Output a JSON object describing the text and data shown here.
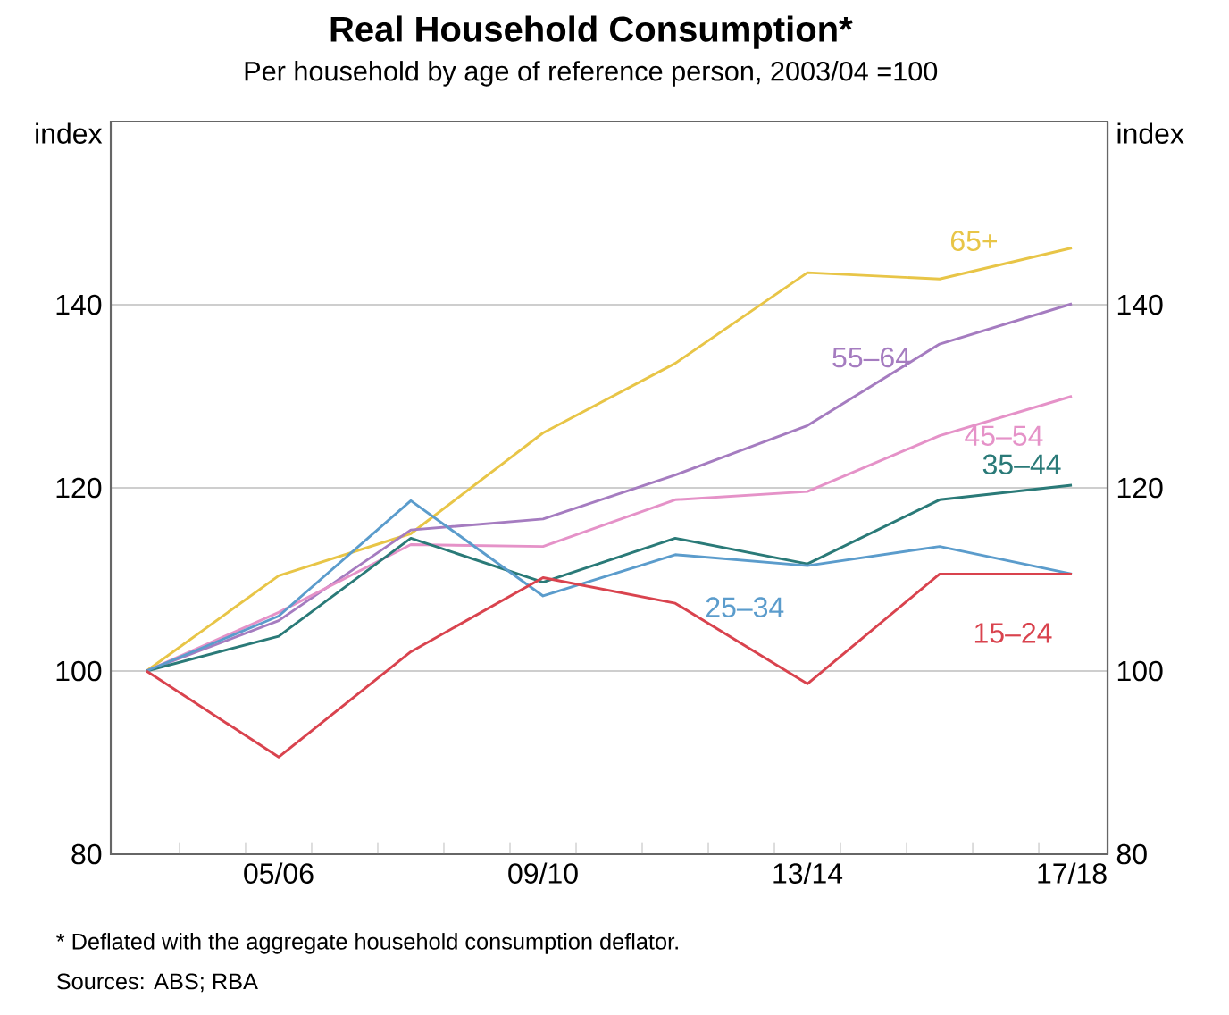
{
  "chart_data": {
    "type": "line",
    "title": "Real Household Consumption*",
    "subtitle": "Per household by age of reference person, 2003/04 =100",
    "ylabel": "index",
    "y2label": "index",
    "categories": [
      null,
      "05/06",
      null,
      "09/10",
      null,
      "13/14",
      null,
      "17/18"
    ],
    "series": [
      {
        "name": "65+",
        "color": "#e8c547",
        "values": [
          100,
          110.4,
          115,
          126,
          133.6,
          143.5,
          142.8,
          146.2
        ]
      },
      {
        "name": "55–64",
        "color": "#a57cc0",
        "values": [
          100,
          105.5,
          115.4,
          116.6,
          121.4,
          126.8,
          135.7,
          140.1
        ]
      },
      {
        "name": "45–54",
        "color": "#e592c8",
        "values": [
          100,
          106.4,
          113.8,
          113.6,
          118.7,
          119.6,
          125.7,
          130
        ]
      },
      {
        "name": "35–44",
        "color": "#2a7a78",
        "values": [
          100,
          103.8,
          114.5,
          109.7,
          114.5,
          111.7,
          118.7,
          120.3
        ]
      },
      {
        "name": "25–34",
        "color": "#5b9ccc",
        "values": [
          100,
          106,
          118.6,
          108.2,
          112.7,
          111.5,
          113.6,
          110.6
        ]
      },
      {
        "name": "15–24",
        "color": "#d9434e",
        "values": [
          100,
          90.6,
          102.1,
          110.2,
          107.4,
          98.6,
          110.6,
          110.6
        ]
      }
    ],
    "ylim": [
      80,
      160
    ],
    "yticks": [
      80,
      100,
      120,
      140
    ],
    "y2lim": [
      80,
      160
    ],
    "y2ticks": [
      80,
      100,
      120,
      140
    ],
    "grid": "y",
    "annotations": [
      "*    Deflated with the aggregate household consumption deflator.",
      "Sources: ABS; RBA"
    ]
  }
}
